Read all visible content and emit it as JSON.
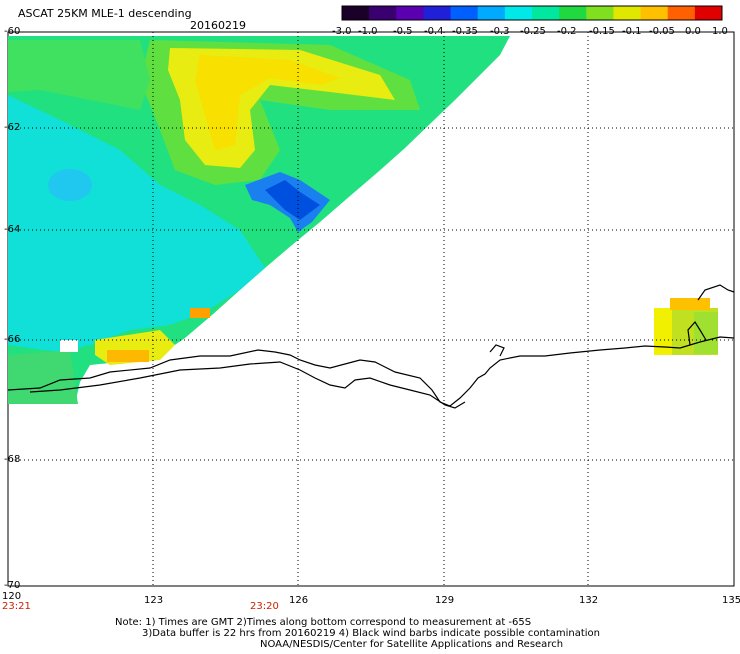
{
  "header": {
    "title": "ASCAT 25KM MLE-1 descending",
    "date": "20160219"
  },
  "colorbar": {
    "ticks": [
      "-3.0",
      "-1.0",
      "-0.5",
      "-0.4",
      "-0.35",
      "-0.3",
      "-0.25",
      "-0.2",
      "-0.15",
      "-0.1",
      "-0.05",
      "0.0",
      "1.0"
    ],
    "colors": [
      "#1a0028",
      "#3a0070",
      "#5a00b0",
      "#2020d8",
      "#0060ff",
      "#00aaff",
      "#00e8e8",
      "#00e8a0",
      "#20d840",
      "#80e020",
      "#e0e800",
      "#ffc000",
      "#ff6000",
      "#e00000"
    ]
  },
  "lat_labels": [
    "-60",
    "-62",
    "-64",
    "-66",
    "-68",
    "-70"
  ],
  "lon_labels": [
    "120",
    "123",
    "126",
    "129",
    "132",
    "135"
  ],
  "time_labels": [
    "23:21",
    "23:20"
  ],
  "notes": [
    "Note: 1) Times are GMT 2)Times along bottom correspond to measurement at -65S",
    "3)Data buffer is 22 hrs from 20160219 4) Black wind barbs indicate possible contamination",
    "NOAA/NESDIS/Center for Satellite Applications and Research"
  ]
}
